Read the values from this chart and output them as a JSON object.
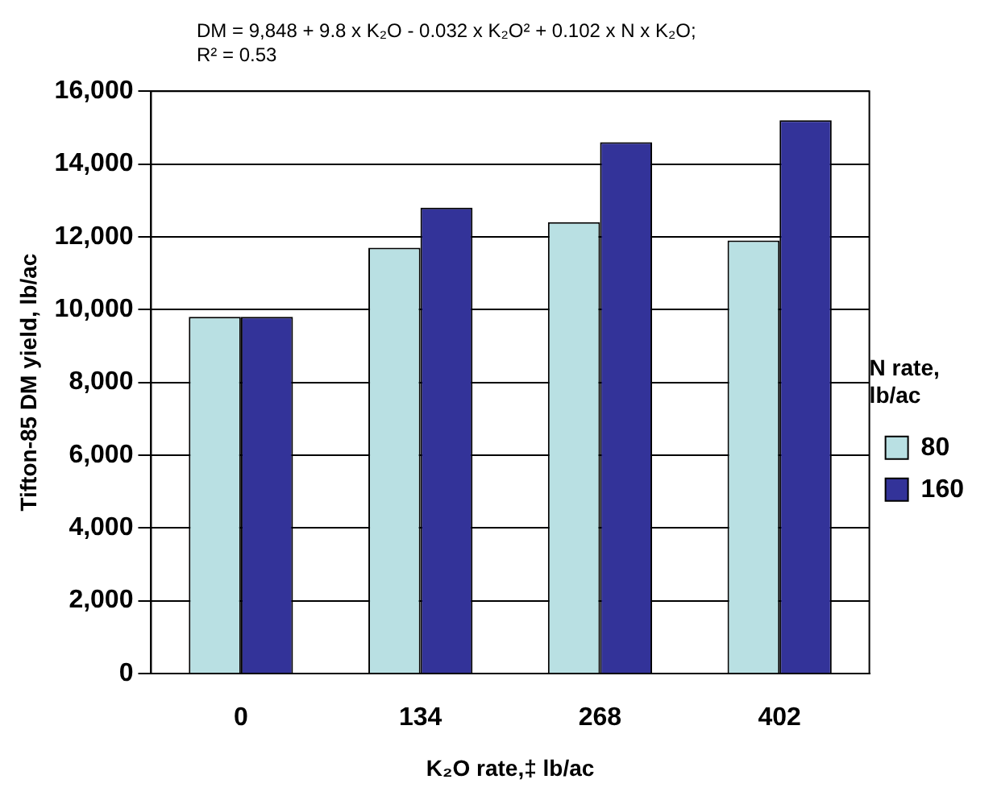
{
  "chart_data": {
    "type": "bar",
    "title": "DM = 9,848 + 9.8 x K₂O - 0.032 x K₂O² + 0.102 x N x K₂O;",
    "subtitle": "R² = 0.53",
    "xlabel": "K₂O rate,‡ lb/ac",
    "ylabel": "Tifton-85 DM yield, lb/ac",
    "legend_title": "N rate, lb/ac",
    "legend": "right",
    "grid": "y",
    "categories": [
      "0",
      "134",
      "268",
      "402"
    ],
    "series": [
      {
        "name": "80",
        "color": "#b9e0e3",
        "values": [
          9800,
          11700,
          12400,
          11900
        ]
      },
      {
        "name": "160",
        "color": "#333399",
        "values": [
          9800,
          12800,
          14600,
          15200
        ]
      }
    ],
    "ylim": [
      0,
      16000
    ],
    "yticks": [
      {
        "value": 0,
        "label": "0"
      },
      {
        "value": 2000,
        "label": "2,000"
      },
      {
        "value": 4000,
        "label": "4,000"
      },
      {
        "value": 6000,
        "label": "6,000"
      },
      {
        "value": 8000,
        "label": "8,000"
      },
      {
        "value": 10000,
        "label": "10,000"
      },
      {
        "value": 12000,
        "label": "12,000"
      },
      {
        "value": 14000,
        "label": "14,000"
      },
      {
        "value": 16000,
        "label": "16,000"
      }
    ]
  }
}
